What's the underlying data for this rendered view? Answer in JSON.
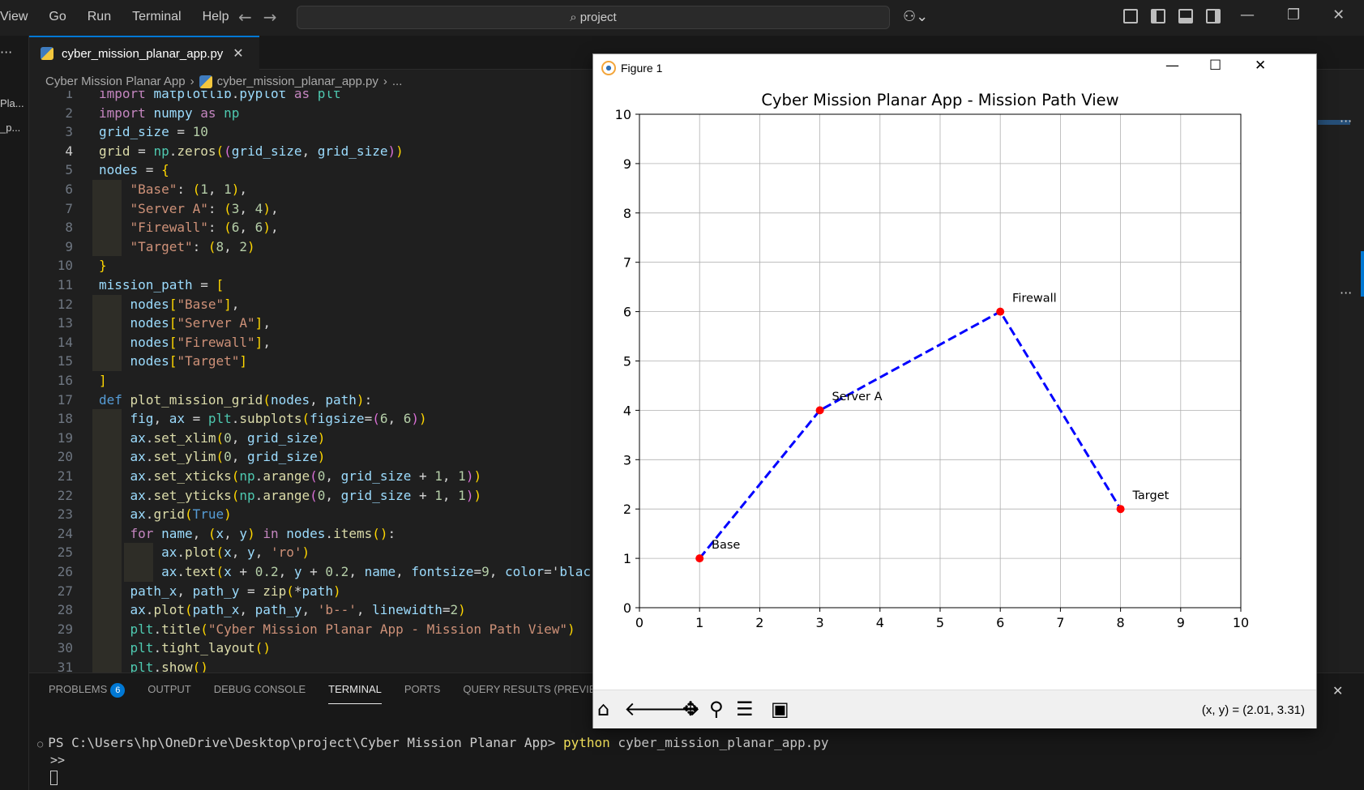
{
  "titlebar": {
    "menus": [
      "View",
      "Go",
      "Run",
      "Terminal",
      "Help"
    ],
    "search": "project",
    "copilot_icon": "copilot-icon"
  },
  "left_strip": {
    "labels": [
      "Pla...",
      "_p..."
    ]
  },
  "tab": {
    "label": "cyber_mission_planar_app.py",
    "close": "✕"
  },
  "breadcrumb": {
    "folder": "Cyber Mission Planar App",
    "file": "cyber_mission_planar_app.py",
    "more": "..."
  },
  "editor": {
    "current_line": 4,
    "lines": [
      {
        "n": "1",
        "t": "import matplotlib.pyplot as plt"
      },
      {
        "n": "2",
        "t": "import numpy as np"
      },
      {
        "n": "3",
        "t": "grid_size = 10"
      },
      {
        "n": "4",
        "t": "grid = np.zeros((grid_size, grid_size))"
      },
      {
        "n": "5",
        "t": "nodes = {"
      },
      {
        "n": "6",
        "t": "    \"Base\": (1, 1),"
      },
      {
        "n": "7",
        "t": "    \"Server A\": (3, 4),"
      },
      {
        "n": "8",
        "t": "    \"Firewall\": (6, 6),"
      },
      {
        "n": "9",
        "t": "    \"Target\": (8, 2)"
      },
      {
        "n": "10",
        "t": "}"
      },
      {
        "n": "11",
        "t": "mission_path = ["
      },
      {
        "n": "12",
        "t": "    nodes[\"Base\"],"
      },
      {
        "n": "13",
        "t": "    nodes[\"Server A\"],"
      },
      {
        "n": "14",
        "t": "    nodes[\"Firewall\"],"
      },
      {
        "n": "15",
        "t": "    nodes[\"Target\"]"
      },
      {
        "n": "16",
        "t": "]"
      },
      {
        "n": "17",
        "t": "def plot_mission_grid(nodes, path):"
      },
      {
        "n": "18",
        "t": "    fig, ax = plt.subplots(figsize=(6, 6))"
      },
      {
        "n": "19",
        "t": "    ax.set_xlim(0, grid_size)"
      },
      {
        "n": "20",
        "t": "    ax.set_ylim(0, grid_size)"
      },
      {
        "n": "21",
        "t": "    ax.set_xticks(np.arange(0, grid_size + 1, 1))"
      },
      {
        "n": "22",
        "t": "    ax.set_yticks(np.arange(0, grid_size + 1, 1))"
      },
      {
        "n": "23",
        "t": "    ax.grid(True)"
      },
      {
        "n": "24",
        "t": "    for name, (x, y) in nodes.items():"
      },
      {
        "n": "25",
        "t": "        ax.plot(x, y, 'ro')"
      },
      {
        "n": "26",
        "t": "        ax.text(x + 0.2, y + 0.2, name, fontsize=9, color='blac"
      },
      {
        "n": "27",
        "t": "    path_x, path_y = zip(*path)"
      },
      {
        "n": "28",
        "t": "    ax.plot(path_x, path_y, 'b--', linewidth=2)"
      },
      {
        "n": "29",
        "t": "    plt.title(\"Cyber Mission Planar App - Mission Path View\")"
      },
      {
        "n": "30",
        "t": "    plt.tight_layout()"
      },
      {
        "n": "31",
        "t": "    plt.show()"
      }
    ]
  },
  "panel": {
    "tabs": [
      "PROBLEMS",
      "OUTPUT",
      "DEBUG CONSOLE",
      "TERMINAL",
      "PORTS",
      "QUERY RESULTS (PREVIEW)"
    ],
    "problems_count": "6",
    "active_tab": "TERMINAL",
    "terminal_prompt": "PS C:\\Users\\hp\\OneDrive\\Desktop\\project\\Cyber Mission Planar App> ",
    "terminal_cmd": "python",
    "terminal_arg": " cyber_mission_planar_app.py",
    "continuation": ">>"
  },
  "figure": {
    "window_title": "Figure 1",
    "coords_readout": "(x, y) = (2.01, 3.31)",
    "toolbar_icons": [
      "home-icon",
      "back-icon",
      "forward-icon",
      "pan-icon",
      "zoom-icon",
      "configure-icon",
      "save-icon"
    ]
  },
  "chart_data": {
    "type": "line",
    "title": "Cyber Mission Planar App - Mission Path View",
    "xlabel": "",
    "ylabel": "",
    "xlim": [
      0,
      10
    ],
    "ylim": [
      0,
      10
    ],
    "xticks": [
      "0",
      "1",
      "2",
      "3",
      "4",
      "5",
      "6",
      "7",
      "8",
      "9",
      "10"
    ],
    "yticks": [
      "0",
      "1",
      "2",
      "3",
      "4",
      "5",
      "6",
      "7",
      "8",
      "9",
      "10"
    ],
    "grid": true,
    "points": [
      {
        "name": "Base",
        "x": 1,
        "y": 1
      },
      {
        "name": "Server A",
        "x": 3,
        "y": 4
      },
      {
        "name": "Firewall",
        "x": 6,
        "y": 6
      },
      {
        "name": "Target",
        "x": 8,
        "y": 2
      }
    ],
    "path": {
      "style": "dashed",
      "color": "#0000ff",
      "x": [
        1,
        3,
        6,
        8
      ],
      "y": [
        1,
        4,
        6,
        2
      ]
    },
    "marker_color": "#ff0000"
  }
}
